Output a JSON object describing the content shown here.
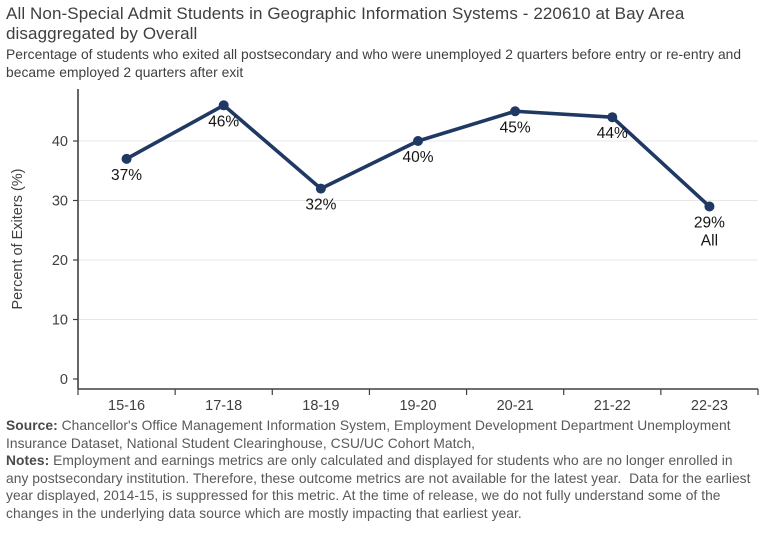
{
  "title": "All Non-Special Admit Students in Geographic Information Systems - 220610 at Bay Area disaggregated by Overall",
  "subtitle": "Percentage of students who exited all postsecondary and who were unemployed 2 quarters before entry or re-entry and became employed 2 quarters after exit",
  "chart_data": {
    "type": "line",
    "categories": [
      "15-16",
      "17-18",
      "18-19",
      "19-20",
      "20-21",
      "21-22",
      "22-23"
    ],
    "values": [
      37,
      46,
      32,
      40,
      45,
      44,
      29
    ],
    "point_labels": [
      "37%",
      "46%",
      "32%",
      "40%",
      "45%",
      "44%",
      "29%"
    ],
    "last_point_annotation": "All",
    "ylabel": "Percent of Exiters (%)",
    "yticks": [
      0,
      10,
      20,
      30,
      40
    ],
    "ylim": [
      0,
      48
    ],
    "grid": true,
    "legend_position": "none",
    "line_color": "#1f3864",
    "marker_color": "#1f3864",
    "grid_color": "#e7e7e7",
    "axis_color": "#404040",
    "tick_label_color": "#404040",
    "data_label_color": "#141414"
  },
  "footer": {
    "source_label": "Source:",
    "source_text": " Chancellor's Office Management Information System, Employment Development Department Unemployment Insurance Dataset, National Student Clearinghouse, CSU/UC Cohort Match,",
    "notes_label": "Notes:",
    "notes_text": " Employment and earnings metrics are only calculated and displayed for students who are no longer enrolled in any postsecondary institution. Therefore, these outcome metrics are not available for the latest year.  Data for the earliest year displayed, 2014-15, is suppressed for this metric. At the time of release, we do not fully understand some of the changes in the underlying data source which are mostly impacting that earliest year."
  }
}
